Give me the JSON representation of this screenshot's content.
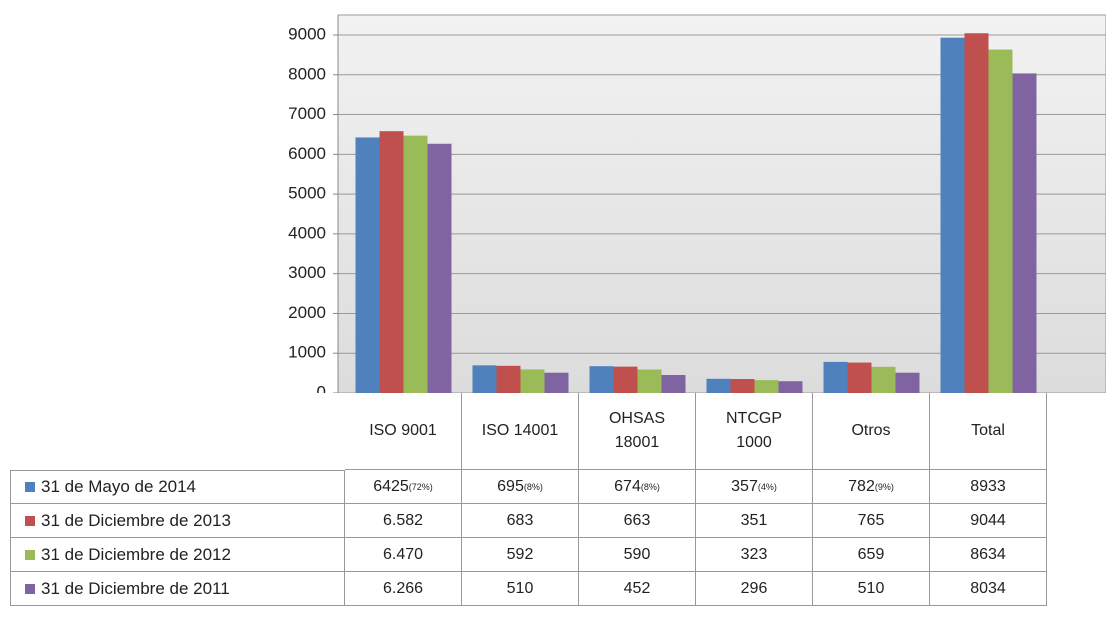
{
  "chart_data": {
    "type": "bar",
    "categories": [
      "ISO 9001",
      "ISO 14001",
      "OHSAS 18001",
      "NTCGP 1000",
      "Otros",
      "Total"
    ],
    "series": [
      {
        "name": "31 de Mayo de 2014",
        "color": "#4f81bd",
        "values": [
          6425,
          695,
          674,
          357,
          782,
          8933
        ],
        "value_labels": [
          "6425",
          "695",
          "674",
          "357",
          "782",
          "8933"
        ],
        "share_labels": [
          "(72%)",
          "(8%)",
          "(8%)",
          "(4%)",
          "(9%)"
        ]
      },
      {
        "name": "31 de Diciembre de 2013",
        "color": "#c0504d",
        "values": [
          6582,
          683,
          663,
          351,
          765,
          9044
        ],
        "value_labels": [
          "6.582",
          "683",
          "663",
          "351",
          "765",
          "9044"
        ]
      },
      {
        "name": "31 de Diciembre de 2012",
        "color": "#9bbb59",
        "values": [
          6470,
          592,
          590,
          323,
          659,
          8634
        ],
        "value_labels": [
          "6.470",
          "592",
          "590",
          "323",
          "659",
          "8634"
        ]
      },
      {
        "name": "31 de Diciembre de 2011",
        "color": "#8064a2",
        "values": [
          6266,
          510,
          452,
          296,
          510,
          8034
        ],
        "value_labels": [
          "6.266",
          "510",
          "452",
          "296",
          "510",
          "8034"
        ]
      }
    ],
    "ylim": [
      0,
      9000
    ],
    "yticks": [
      0,
      1000,
      2000,
      3000,
      4000,
      5000,
      6000,
      7000,
      8000,
      9000
    ],
    "grid": true
  }
}
